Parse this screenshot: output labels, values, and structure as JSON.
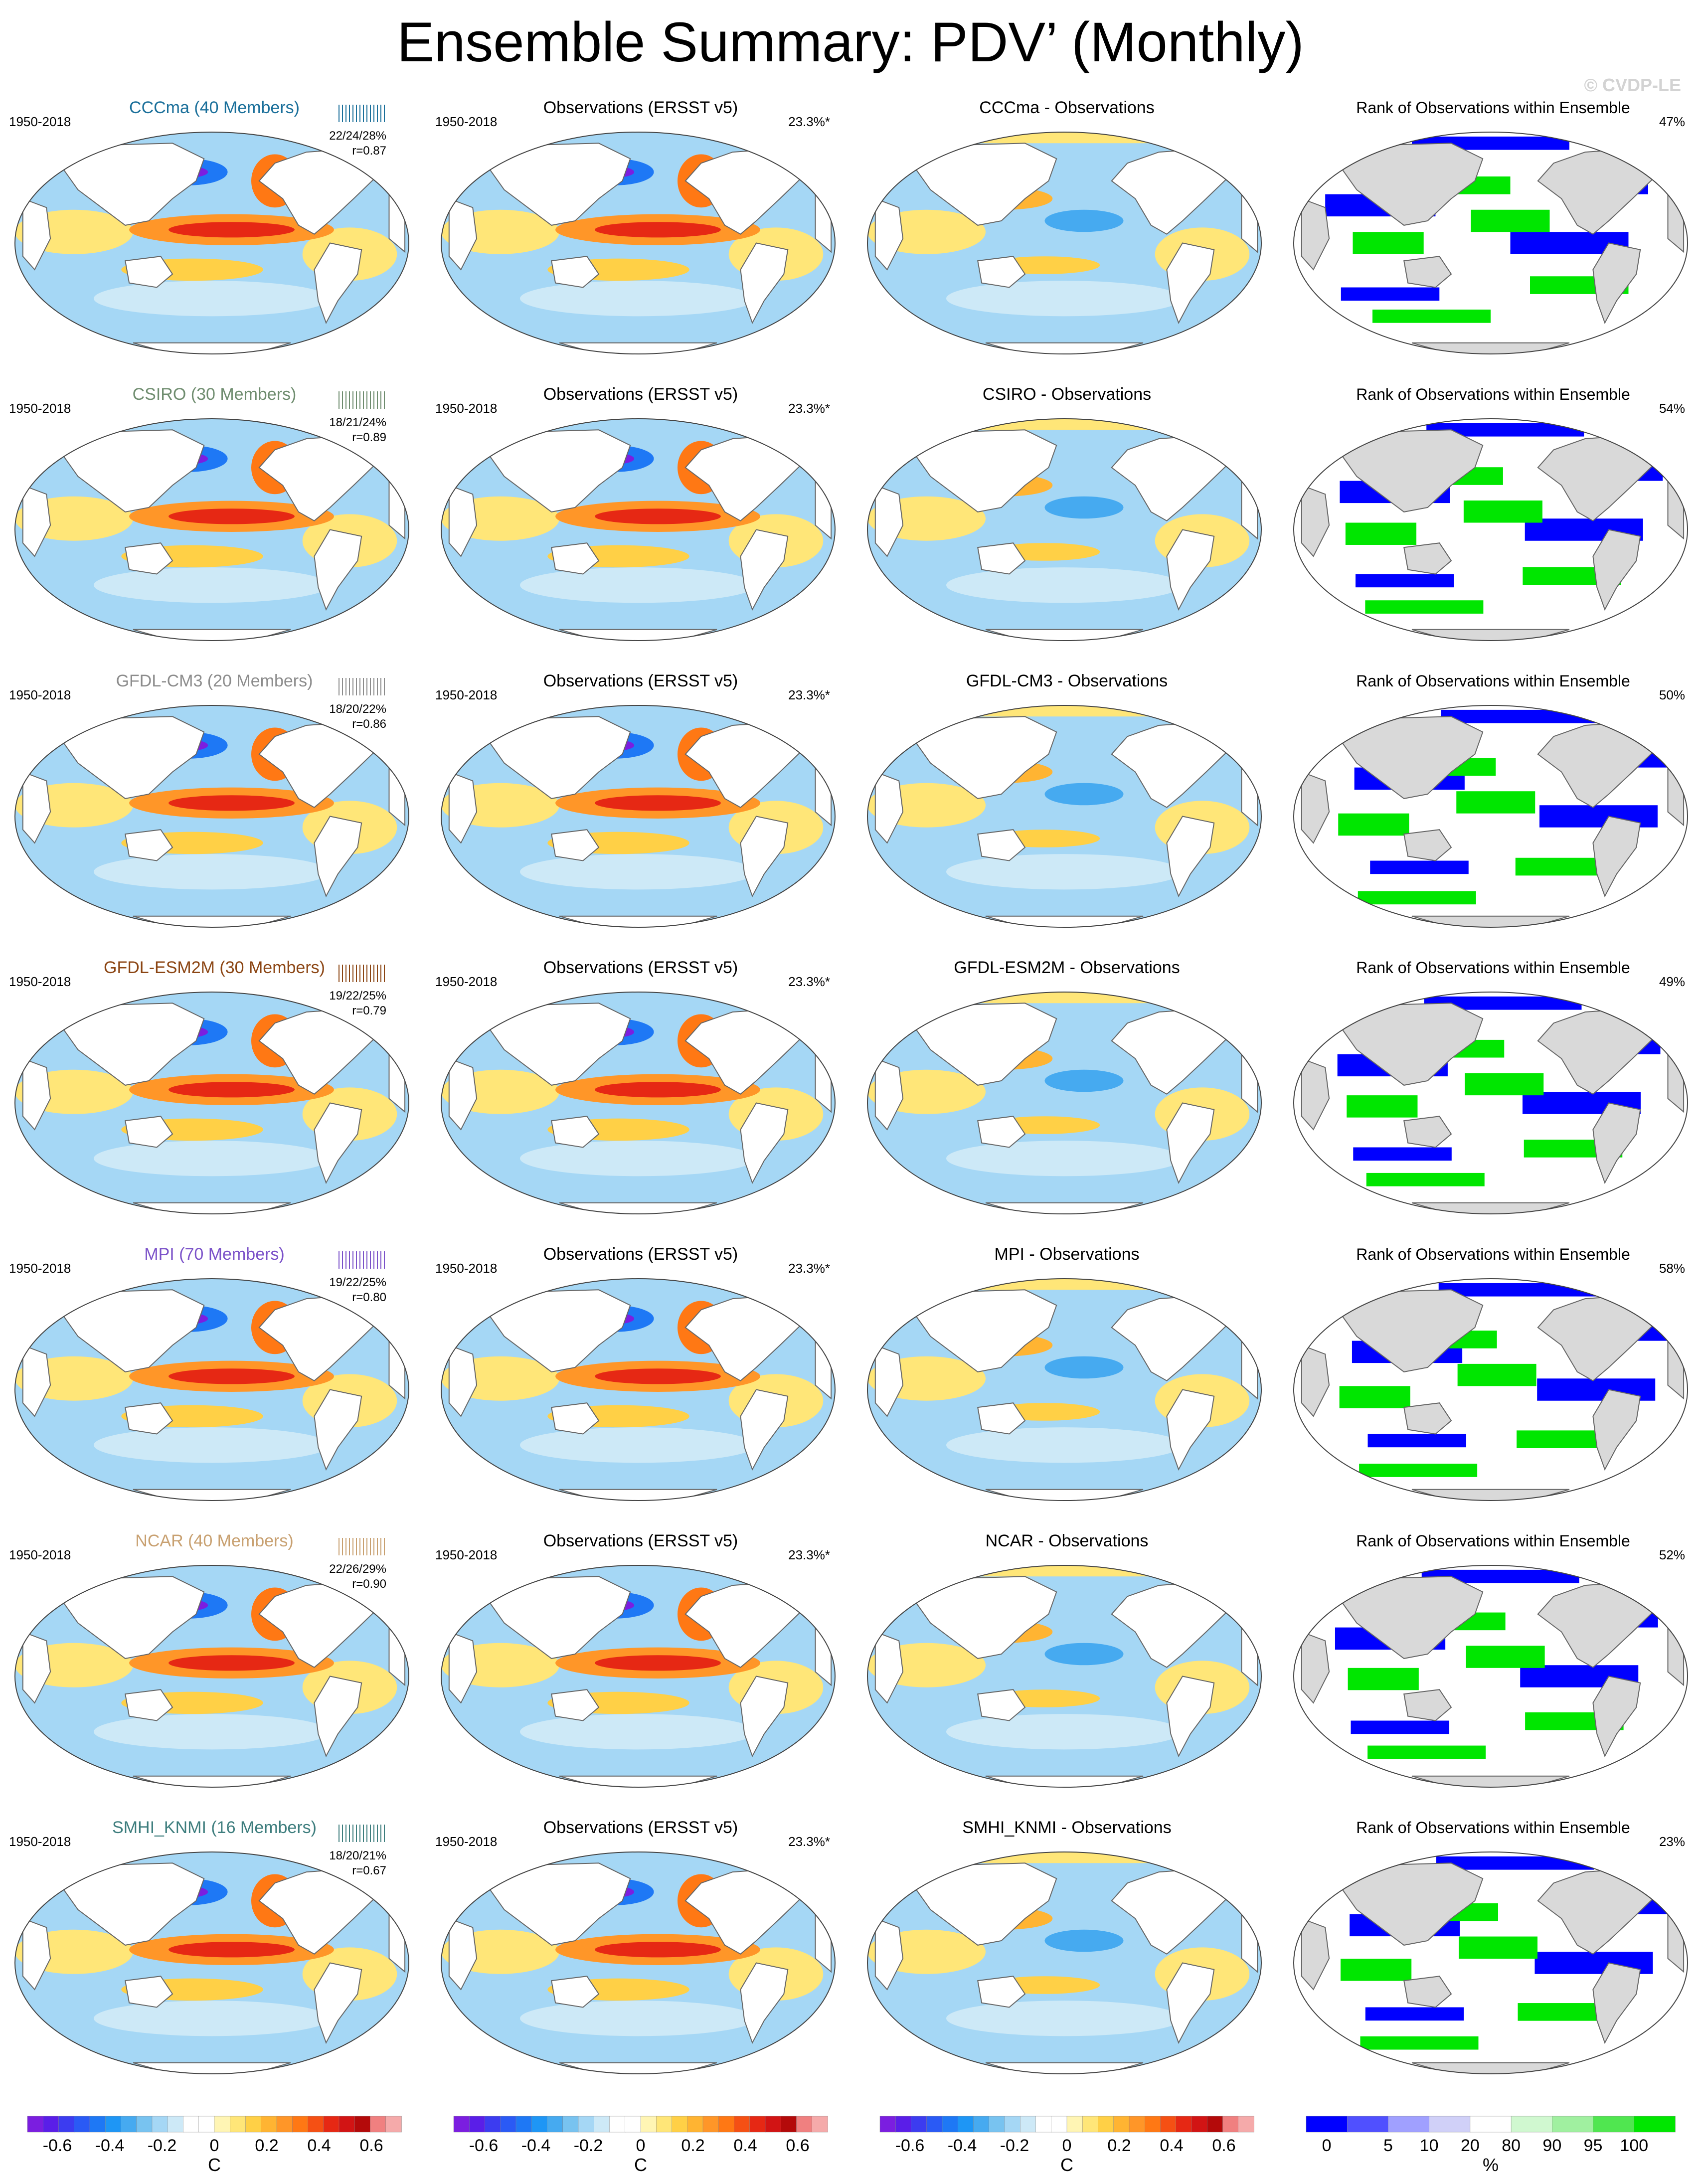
{
  "title": "Ensemble Summary: PDV’ (Monthly)",
  "copyright": "© CVDP-LE",
  "years": "1950-2018",
  "obs_title": "Observations (ERSST v5)",
  "obs_pct": "23.3%*",
  "rank_title": "Rank of Observations within Ensemble",
  "colors": {
    "land": "#d9d9d9",
    "coast": "#666666"
  },
  "chart_data": {
    "type": "map-panel-grid",
    "columns": [
      "ensemble-mean pattern",
      "observations",
      "difference",
      "rank"
    ],
    "rows": [
      {
        "model": "CCCma",
        "members": "CCCma (40 Members)",
        "color": "#1a6f9a",
        "stats": "22/24/28%",
        "r": "r=0.87",
        "diff_title": "CCCma - Observations",
        "rank_pct": "47%"
      },
      {
        "model": "CSIRO",
        "members": "CSIRO (30 Members)",
        "color": "#6e8c6e",
        "stats": "18/21/24%",
        "r": "r=0.89",
        "diff_title": "CSIRO - Observations",
        "rank_pct": "54%"
      },
      {
        "model": "GFDL-CM3",
        "members": "GFDL-CM3 (20 Members)",
        "color": "#8c8c8c",
        "stats": "18/20/22%",
        "r": "r=0.86",
        "diff_title": "GFDL-CM3 - Observations",
        "rank_pct": "50%"
      },
      {
        "model": "GFDL-ESM2M",
        "members": "GFDL-ESM2M (30 Members)",
        "color": "#8b4513",
        "stats": "19/22/25%",
        "r": "r=0.79",
        "diff_title": "GFDL-ESM2M - Observations",
        "rank_pct": "49%"
      },
      {
        "model": "MPI",
        "members": "MPI (70 Members)",
        "color": "#7b52c9",
        "stats": "19/22/25%",
        "r": "r=0.80",
        "diff_title": "MPI - Observations",
        "rank_pct": "58%"
      },
      {
        "model": "NCAR",
        "members": "NCAR (40 Members)",
        "color": "#c8a070",
        "stats": "22/26/29%",
        "r": "r=0.90",
        "diff_title": "NCAR - Observations",
        "rank_pct": "52%"
      },
      {
        "model": "SMHI_KNMI",
        "members": "SMHI_KNMI (16 Members)",
        "color": "#3d7d7d",
        "stats": "18/20/21%",
        "r": "r=0.67",
        "diff_title": "SMHI_KNMI - Observations",
        "rank_pct": "23%"
      }
    ],
    "sst_colorbar": {
      "unit": "C",
      "tick_labels": [
        "-0.6",
        "-0.4",
        "-0.2",
        "0",
        "0.2",
        "0.4",
        "0.6"
      ],
      "colors": [
        "#7b1ee0",
        "#5a1ee8",
        "#3c3cf0",
        "#2a5af5",
        "#1e78f5",
        "#1e96f5",
        "#46aaf0",
        "#78c3f0",
        "#a5d7f5",
        "#cde9f7",
        "#ffffff",
        "#ffffff",
        "#fff5b4",
        "#ffe678",
        "#ffd046",
        "#ffb432",
        "#ff9628",
        "#ff7814",
        "#f55014",
        "#e62814",
        "#d21414",
        "#b40a0a",
        "#f08080",
        "#f5aaaa"
      ]
    },
    "rank_colorbar": {
      "unit": "%",
      "tick_labels": [
        "0",
        "5",
        "10",
        "20",
        "80",
        "90",
        "95",
        "100"
      ],
      "colors": [
        "#0000ff",
        "#5050ff",
        "#a0a0ff",
        "#d0d0f8",
        "#ffffff",
        "#d0f8d0",
        "#a0f0a0",
        "#50e650",
        "#00e600"
      ]
    }
  }
}
